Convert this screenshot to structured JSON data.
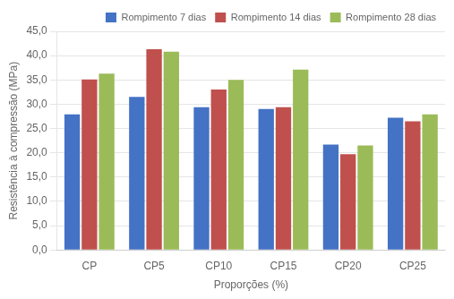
{
  "chart_data": {
    "type": "bar",
    "categories": [
      "CP",
      "CP5",
      "CP10",
      "CP15",
      "CP20",
      "CP25"
    ],
    "series": [
      {
        "name": "Rompimento 7 dias",
        "color": "#4472C4",
        "values": [
          27.9,
          31.5,
          29.4,
          29.0,
          21.7,
          27.2
        ]
      },
      {
        "name": "Rompimento 14 dias",
        "color": "#C0504D",
        "values": [
          35.1,
          41.3,
          33.0,
          29.4,
          19.7,
          26.5
        ]
      },
      {
        "name": "Rompimento 28 dias",
        "color": "#9BBB59",
        "values": [
          36.3,
          40.8,
          35.0,
          37.1,
          21.5,
          27.9
        ]
      }
    ],
    "xlabel": "Proporções (%)",
    "ylabel": "Resistência à compressão (MPa)",
    "ylim": [
      0,
      45
    ],
    "yticks": [
      {
        "value": 0,
        "label": "0,0"
      },
      {
        "value": 5,
        "label": "5,0"
      },
      {
        "value": 10,
        "label": "10,0"
      },
      {
        "value": 15,
        "label": "15,0"
      },
      {
        "value": 20,
        "label": "20,0"
      },
      {
        "value": 25,
        "label": "25,0"
      },
      {
        "value": 30,
        "label": "30,0"
      },
      {
        "value": 35,
        "label": "35,0"
      },
      {
        "value": 40,
        "label": "40,0"
      },
      {
        "value": 45,
        "label": "45,0"
      }
    ],
    "grid": true,
    "legend": "upper right"
  }
}
